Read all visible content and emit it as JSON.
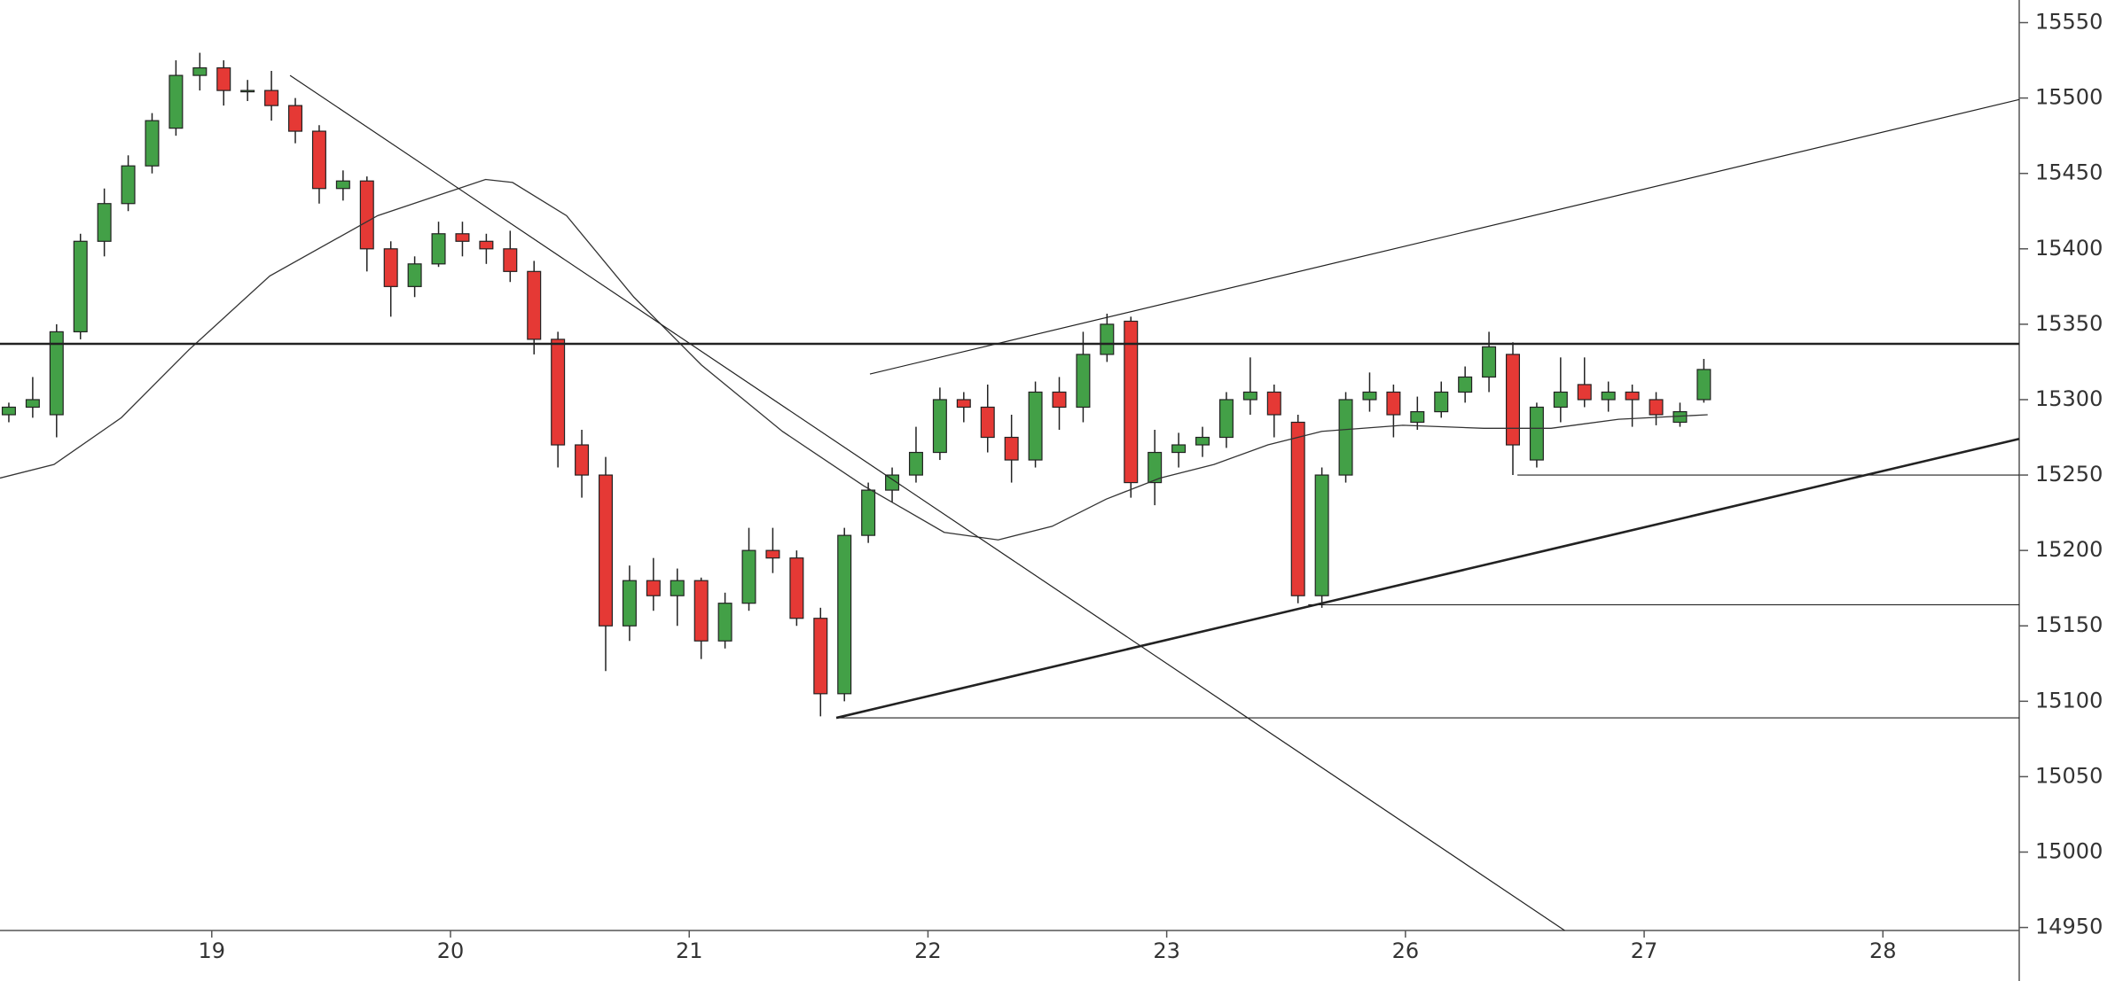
{
  "chart_data": {
    "type": "candlestick",
    "xlim": [
      -0.887,
      7.571
    ],
    "ylim": [
      14948,
      15565
    ],
    "xticks": [
      {
        "value": 0,
        "label": "19"
      },
      {
        "value": 1,
        "label": "20"
      },
      {
        "value": 2,
        "label": "21"
      },
      {
        "value": 3,
        "label": "22"
      },
      {
        "value": 4,
        "label": "23"
      },
      {
        "value": 5,
        "label": "26"
      },
      {
        "value": 6,
        "label": "27"
      },
      {
        "value": 7,
        "label": "28"
      }
    ],
    "yticks": [
      14950,
      15000,
      15050,
      15100,
      15150,
      15200,
      15250,
      15300,
      15350,
      15400,
      15450,
      15500,
      15550
    ],
    "up_color": "#43a047",
    "down_color": "#e53935",
    "ma_color": "#333333",
    "line_color": "#222222",
    "x": [
      -0.85,
      -0.75,
      -0.65,
      -0.55,
      -0.45,
      -0.35,
      -0.25,
      -0.15,
      -0.05,
      0.05,
      0.15,
      0.25,
      0.35,
      0.45,
      0.55,
      0.65,
      0.75,
      0.85,
      0.95,
      1.05,
      1.15,
      1.25,
      1.35,
      1.45,
      1.55,
      1.65,
      1.75,
      1.85,
      1.95,
      2.05,
      2.15,
      2.25,
      2.35,
      2.45,
      2.55,
      2.65,
      2.75,
      2.85,
      2.95,
      3.05,
      3.15,
      3.25,
      3.35,
      3.45,
      3.55,
      3.65,
      3.75,
      3.85,
      3.95,
      4.05,
      4.15,
      4.25,
      4.35,
      4.45,
      4.55,
      4.65,
      4.75,
      4.85,
      4.95,
      5.05,
      5.15,
      5.25,
      5.35,
      5.45,
      5.55,
      5.65,
      5.75,
      5.85,
      5.95,
      6.05,
      6.15,
      6.25
    ],
    "ohlc": [
      [
        15290,
        15298,
        15285,
        15295
      ],
      [
        15295,
        15315,
        15288,
        15300
      ],
      [
        15290,
        15350,
        15275,
        15345
      ],
      [
        15345,
        15410,
        15340,
        15405
      ],
      [
        15405,
        15440,
        15395,
        15430
      ],
      [
        15430,
        15462,
        15425,
        15455
      ],
      [
        15455,
        15490,
        15450,
        15485
      ],
      [
        15480,
        15525,
        15475,
        15515
      ],
      [
        15515,
        15530,
        15505,
        15520
      ],
      [
        15520,
        15525,
        15495,
        15505
      ],
      [
        15505,
        15512,
        15498,
        15505
      ],
      [
        15505,
        15518,
        15485,
        15495
      ],
      [
        15495,
        15500,
        15470,
        15478
      ],
      [
        15478,
        15482,
        15430,
        15440
      ],
      [
        15440,
        15452,
        15432,
        15445
      ],
      [
        15445,
        15448,
        15385,
        15400
      ],
      [
        15400,
        15405,
        15355,
        15375
      ],
      [
        15375,
        15395,
        15368,
        15390
      ],
      [
        15390,
        15418,
        15388,
        15410
      ],
      [
        15410,
        15418,
        15395,
        15405
      ],
      [
        15405,
        15410,
        15390,
        15400
      ],
      [
        15400,
        15412,
        15378,
        15385
      ],
      [
        15385,
        15392,
        15330,
        15340
      ],
      [
        15340,
        15345,
        15255,
        15270
      ],
      [
        15270,
        15280,
        15235,
        15250
      ],
      [
        15250,
        15262,
        15120,
        15150
      ],
      [
        15150,
        15190,
        15140,
        15180
      ],
      [
        15180,
        15195,
        15160,
        15170
      ],
      [
        15170,
        15188,
        15150,
        15180
      ],
      [
        15180,
        15182,
        15128,
        15140
      ],
      [
        15140,
        15172,
        15135,
        15165
      ],
      [
        15165,
        15215,
        15160,
        15200
      ],
      [
        15200,
        15215,
        15185,
        15195
      ],
      [
        15195,
        15200,
        15150,
        15155
      ],
      [
        15155,
        15162,
        15090,
        15105
      ],
      [
        15105,
        15215,
        15100,
        15210
      ],
      [
        15210,
        15245,
        15205,
        15240
      ],
      [
        15240,
        15255,
        15232,
        15250
      ],
      [
        15250,
        15282,
        15245,
        15265
      ],
      [
        15265,
        15308,
        15260,
        15300
      ],
      [
        15300,
        15305,
        15285,
        15295
      ],
      [
        15295,
        15310,
        15265,
        15275
      ],
      [
        15275,
        15290,
        15245,
        15260
      ],
      [
        15260,
        15312,
        15255,
        15305
      ],
      [
        15305,
        15315,
        15280,
        15295
      ],
      [
        15295,
        15345,
        15285,
        15330
      ],
      [
        15330,
        15357,
        15325,
        15350
      ],
      [
        15352,
        15355,
        15235,
        15245
      ],
      [
        15245,
        15280,
        15230,
        15265
      ],
      [
        15265,
        15278,
        15255,
        15270
      ],
      [
        15270,
        15282,
        15262,
        15275
      ],
      [
        15275,
        15305,
        15268,
        15300
      ],
      [
        15300,
        15328,
        15290,
        15305
      ],
      [
        15305,
        15310,
        15275,
        15290
      ],
      [
        15285,
        15290,
        15165,
        15170
      ],
      [
        15170,
        15255,
        15162,
        15250
      ],
      [
        15250,
        15305,
        15245,
        15300
      ],
      [
        15300,
        15318,
        15292,
        15305
      ],
      [
        15305,
        15310,
        15275,
        15290
      ],
      [
        15285,
        15302,
        15280,
        15292
      ],
      [
        15292,
        15312,
        15288,
        15305
      ],
      [
        15305,
        15322,
        15298,
        15315
      ],
      [
        15315,
        15345,
        15305,
        15335
      ],
      [
        15330,
        15338,
        15250,
        15270
      ],
      [
        15260,
        15298,
        15255,
        15295
      ],
      [
        15295,
        15328,
        15285,
        15305
      ],
      [
        15310,
        15328,
        15295,
        15300
      ],
      [
        15300,
        15312,
        15292,
        15305
      ],
      [
        15305,
        15310,
        15282,
        15300
      ],
      [
        15300,
        15305,
        15283,
        15290
      ],
      [
        15285,
        15298,
        15282,
        15292
      ],
      [
        15300,
        15327,
        15298,
        15320
      ]
    ],
    "ma": {
      "x": [
        -0.887,
        -0.661,
        -0.379,
        -0.096,
        0.243,
        0.695,
        1.147,
        1.26,
        1.486,
        1.768,
        2.051,
        2.39,
        2.729,
        3.068,
        3.294,
        3.52,
        3.746,
        3.972,
        4.198,
        4.424,
        4.65,
        4.989,
        5.328,
        5.61,
        5.893,
        6.266
      ],
      "values": [
        15248,
        15257,
        15288,
        15333,
        15382,
        15422,
        15446,
        15444,
        15422,
        15368,
        15323,
        15279,
        15243,
        15212,
        15207,
        15216,
        15234,
        15248,
        15257,
        15270,
        15279,
        15283,
        15281,
        15281,
        15287,
        15290
      ]
    },
    "lines": [
      {
        "x": [
          0.328,
          5.667
        ],
        "y": [
          15515,
          14948
        ]
      },
      {
        "x": [
          2.757,
          7.571
        ],
        "y": [
          15317,
          15499
        ]
      },
      {
        "x": [
          2.616,
          7.571
        ],
        "y": [
          15089,
          15274
        ],
        "heavy": true
      },
      {
        "x": [
          2.616,
          7.571
        ],
        "y": [
          15089,
          15089
        ]
      },
      {
        "x": [
          4.593,
          7.571
        ],
        "y": [
          15164,
          15164
        ]
      },
      {
        "x": [
          5.469,
          7.571
        ],
        "y": [
          15250,
          15250
        ]
      },
      {
        "x": [
          -0.887,
          7.571
        ],
        "y": [
          15337,
          15337
        ],
        "heavy": true
      }
    ]
  }
}
